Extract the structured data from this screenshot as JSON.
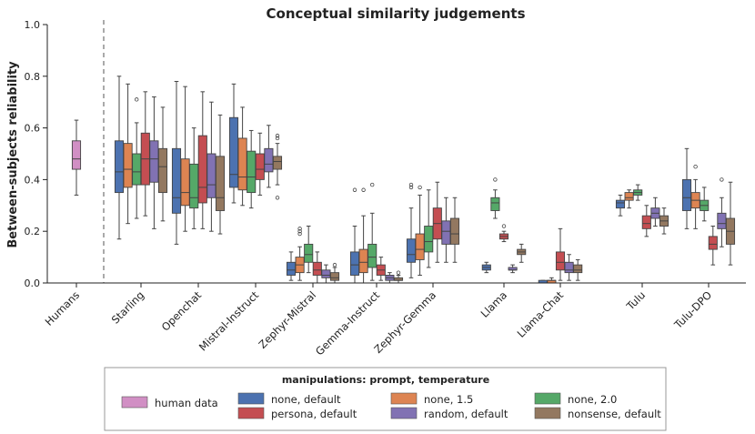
{
  "chart_data": {
    "type": "box",
    "title": "Conceptual similarity judgements",
    "xlabel": "",
    "ylabel": "Between-subjects reliability",
    "ylim": [
      0,
      1.0
    ],
    "yticks": [
      "0.0",
      "0.2",
      "0.4",
      "0.6",
      "0.8",
      "1.0"
    ],
    "categories": [
      "Humans",
      "Starling",
      "Openchat",
      "Mistral-Instruct",
      "Zephyr-Mistral",
      "Gemma-Instruct",
      "Zephyr-Gemma",
      "Llama",
      "Llama-Chat",
      "Tulu",
      "Tulu-DPO"
    ],
    "legend": {
      "title": "manipulations: prompt, temperature",
      "entries": [
        {
          "key": "human",
          "label": "human data",
          "color": "#d18fc4"
        },
        {
          "key": "none_default",
          "label": "none, default",
          "color": "#4c72b0"
        },
        {
          "key": "persona_default",
          "label": "persona, default",
          "color": "#c44e52"
        },
        {
          "key": "none_15",
          "label": "none, 1.5",
          "color": "#dd8452"
        },
        {
          "key": "random_default",
          "label": "random, default",
          "color": "#8172b3"
        },
        {
          "key": "none_20",
          "label": "none, 2.0",
          "color": "#55a868"
        },
        {
          "key": "nonsense_default",
          "label": "nonsense, default",
          "color": "#937860"
        }
      ]
    },
    "series_order": [
      "none_default",
      "none_15",
      "none_20",
      "persona_default",
      "random_default",
      "nonsense_default"
    ],
    "boxes": {
      "Humans": {
        "human": [
          0.34,
          0.44,
          0.48,
          0.55,
          0.63,
          []
        ]
      },
      "Starling": {
        "none_default": [
          0.17,
          0.35,
          0.43,
          0.55,
          0.8,
          []
        ],
        "none_15": [
          0.23,
          0.37,
          0.44,
          0.54,
          0.77,
          []
        ],
        "none_20": [
          0.25,
          0.38,
          0.43,
          0.5,
          0.62,
          [
            0.71
          ]
        ],
        "persona_default": [
          0.26,
          0.38,
          0.48,
          0.58,
          0.74,
          []
        ],
        "random_default": [
          0.21,
          0.39,
          0.48,
          0.55,
          0.72,
          []
        ],
        "nonsense_default": [
          0.24,
          0.35,
          0.45,
          0.52,
          0.68,
          []
        ]
      },
      "Openchat": {
        "none_default": [
          0.15,
          0.27,
          0.33,
          0.52,
          0.78,
          []
        ],
        "none_15": [
          0.2,
          0.3,
          0.35,
          0.48,
          0.76,
          []
        ],
        "none_20": [
          0.21,
          0.29,
          0.33,
          0.46,
          0.6,
          []
        ],
        "persona_default": [
          0.21,
          0.31,
          0.37,
          0.57,
          0.74,
          []
        ],
        "random_default": [
          0.2,
          0.33,
          0.38,
          0.5,
          0.7,
          []
        ],
        "nonsense_default": [
          0.19,
          0.28,
          0.33,
          0.49,
          0.65,
          []
        ]
      },
      "Mistral-Instruct": {
        "none_default": [
          0.31,
          0.37,
          0.42,
          0.64,
          0.77,
          []
        ],
        "none_15": [
          0.3,
          0.36,
          0.41,
          0.56,
          0.68,
          []
        ],
        "none_20": [
          0.29,
          0.35,
          0.41,
          0.51,
          0.59,
          []
        ],
        "persona_default": [
          0.34,
          0.4,
          0.44,
          0.5,
          0.58,
          []
        ],
        "random_default": [
          0.37,
          0.43,
          0.46,
          0.52,
          0.61,
          []
        ],
        "nonsense_default": [
          0.38,
          0.44,
          0.47,
          0.49,
          0.54,
          [
            0.57,
            0.56,
            0.33
          ]
        ]
      },
      "Zephyr-Mistral": {
        "none_default": [
          0.01,
          0.03,
          0.05,
          0.08,
          0.12,
          []
        ],
        "none_15": [
          0.01,
          0.04,
          0.07,
          0.1,
          0.14,
          [
            0.19,
            0.2,
            0.21
          ]
        ],
        "none_20": [
          0.04,
          0.08,
          0.11,
          0.15,
          0.22,
          []
        ],
        "persona_default": [
          0.0,
          0.03,
          0.05,
          0.08,
          0.12,
          []
        ],
        "random_default": [
          0.0,
          0.02,
          0.03,
          0.05,
          0.07,
          []
        ],
        "nonsense_default": [
          0.0,
          0.01,
          0.02,
          0.04,
          0.06,
          [
            0.07
          ]
        ]
      },
      "Gemma-Instruct": {
        "none_default": [
          0.0,
          0.03,
          0.07,
          0.12,
          0.22,
          [
            0.36
          ]
        ],
        "none_15": [
          0.0,
          0.04,
          0.08,
          0.13,
          0.26,
          [
            0.36
          ]
        ],
        "none_20": [
          0.01,
          0.06,
          0.1,
          0.15,
          0.27,
          [
            0.38
          ]
        ],
        "persona_default": [
          0.01,
          0.03,
          0.05,
          0.07,
          0.1,
          []
        ],
        "random_default": [
          0.0,
          0.01,
          0.02,
          0.03,
          0.04,
          []
        ],
        "nonsense_default": [
          0.0,
          0.01,
          0.01,
          0.02,
          0.03,
          [
            0.04
          ]
        ]
      },
      "Zephyr-Gemma": {
        "none_default": [
          0.02,
          0.08,
          0.11,
          0.17,
          0.29,
          [
            0.38,
            0.37
          ]
        ],
        "none_15": [
          0.03,
          0.09,
          0.13,
          0.19,
          0.34,
          [
            0.37
          ]
        ],
        "none_20": [
          0.06,
          0.12,
          0.16,
          0.22,
          0.36,
          []
        ],
        "persona_default": [
          0.08,
          0.17,
          0.23,
          0.29,
          0.39,
          []
        ],
        "random_default": [
          0.08,
          0.15,
          0.2,
          0.24,
          0.33,
          []
        ],
        "nonsense_default": [
          0.08,
          0.15,
          0.19,
          0.25,
          0.33,
          []
        ]
      },
      "Llama": {
        "none_default": [
          0.04,
          0.05,
          0.06,
          0.07,
          0.08,
          []
        ],
        "none_20": [
          0.25,
          0.28,
          0.31,
          0.33,
          0.36,
          [
            0.4
          ]
        ],
        "persona_default": [
          0.16,
          0.17,
          0.18,
          0.19,
          0.2,
          [
            0.22
          ]
        ],
        "random_default": [
          0.04,
          0.05,
          0.05,
          0.06,
          0.07,
          []
        ],
        "nonsense_default": [
          0.08,
          0.11,
          0.12,
          0.13,
          0.15,
          []
        ]
      },
      "Llama-Chat": {
        "none_default": [
          0.0,
          0.0,
          0.0,
          0.01,
          0.01,
          []
        ],
        "none_15": [
          0.0,
          0.0,
          0.01,
          0.01,
          0.02,
          []
        ],
        "persona_default": [
          0.01,
          0.05,
          0.08,
          0.12,
          0.21,
          []
        ],
        "random_default": [
          0.01,
          0.04,
          0.05,
          0.08,
          0.11,
          []
        ],
        "nonsense_default": [
          0.01,
          0.04,
          0.05,
          0.07,
          0.09,
          []
        ]
      },
      "Tulu": {
        "none_default": [
          0.26,
          0.29,
          0.31,
          0.32,
          0.34,
          []
        ],
        "none_15": [
          0.29,
          0.32,
          0.33,
          0.35,
          0.36,
          []
        ],
        "none_20": [
          0.32,
          0.34,
          0.35,
          0.36,
          0.38,
          []
        ],
        "persona_default": [
          0.18,
          0.21,
          0.23,
          0.26,
          0.3,
          []
        ],
        "random_default": [
          0.22,
          0.25,
          0.27,
          0.29,
          0.33,
          []
        ],
        "nonsense_default": [
          0.19,
          0.22,
          0.24,
          0.26,
          0.29,
          []
        ]
      },
      "Tulu-DPO": {
        "none_default": [
          0.21,
          0.28,
          0.33,
          0.4,
          0.52,
          []
        ],
        "none_15": [
          0.21,
          0.29,
          0.32,
          0.35,
          0.4,
          [
            0.45
          ]
        ],
        "none_20": [
          0.24,
          0.28,
          0.3,
          0.32,
          0.37,
          []
        ],
        "persona_default": [
          0.07,
          0.13,
          0.15,
          0.18,
          0.22,
          []
        ],
        "random_default": [
          0.14,
          0.21,
          0.23,
          0.27,
          0.33,
          [
            0.4
          ]
        ],
        "nonsense_default": [
          0.07,
          0.15,
          0.2,
          0.25,
          0.39,
          []
        ]
      }
    }
  }
}
